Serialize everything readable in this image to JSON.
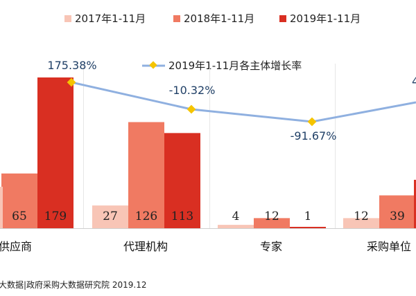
{
  "chart_data": {
    "type": "bar",
    "categories": [
      "供应商",
      "代理机构",
      "专家",
      "采购单位"
    ],
    "series": [
      {
        "name": "2017年1-11月",
        "values": [
          null,
          27,
          4,
          12
        ]
      },
      {
        "name": "2018年1-11月",
        "values": [
          65,
          126,
          12,
          39
        ]
      },
      {
        "name": "2019年1-11月",
        "values": [
          179,
          113,
          1,
          null
        ]
      }
    ],
    "line_series": {
      "name": "2019年1-11月各主体增长率",
      "values": [
        175.38,
        -10.32,
        -91.67,
        null
      ],
      "labels": [
        "175.38%",
        "-10.32%",
        "-91.67%",
        "4"
      ]
    },
    "ylim": [
      0,
      190
    ],
    "grid": false,
    "legend": "top",
    "source": "大数据|政府采购大数据研究院 2019.12"
  },
  "colors": {
    "s2017": "#f8c5b6",
    "s2018": "#f07a62",
    "s2019": "#d92f22",
    "line": "#8fb0e0",
    "marker": "#f5c400",
    "axis": "#cfcfcf",
    "pct_text": "#1f3f66"
  }
}
